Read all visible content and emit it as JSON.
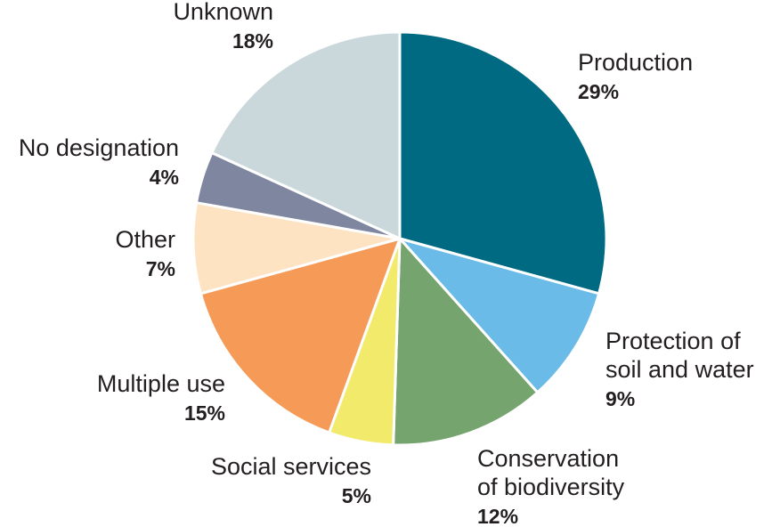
{
  "chart_data": {
    "type": "pie",
    "title": "",
    "start_angle_deg": 0,
    "direction": "clockwise",
    "slices": [
      {
        "label": [
          "Production"
        ],
        "value": 29,
        "pct_label": "29%",
        "color": "#006a82"
      },
      {
        "label": [
          "Protection of",
          "soil and water"
        ],
        "value": 9,
        "pct_label": "9%",
        "color": "#6bbbe8"
      },
      {
        "label": [
          "Conservation",
          "of biodiversity"
        ],
        "value": 12,
        "pct_label": "12%",
        "color": "#76a46f"
      },
      {
        "label": [
          "Social services"
        ],
        "value": 5,
        "pct_label": "5%",
        "color": "#f2ea6b"
      },
      {
        "label": [
          "Multiple use"
        ],
        "value": 15,
        "pct_label": "15%",
        "color": "#f59a57"
      },
      {
        "label": [
          "Other"
        ],
        "value": 7,
        "pct_label": "7%",
        "color": "#fde3c2"
      },
      {
        "label": [
          "No designation"
        ],
        "value": 4,
        "pct_label": "4%",
        "color": "#7f86a0"
      },
      {
        "label": [
          "Unknown"
        ],
        "value": 18,
        "pct_label": "18%",
        "color": "#cad8dc"
      }
    ]
  }
}
